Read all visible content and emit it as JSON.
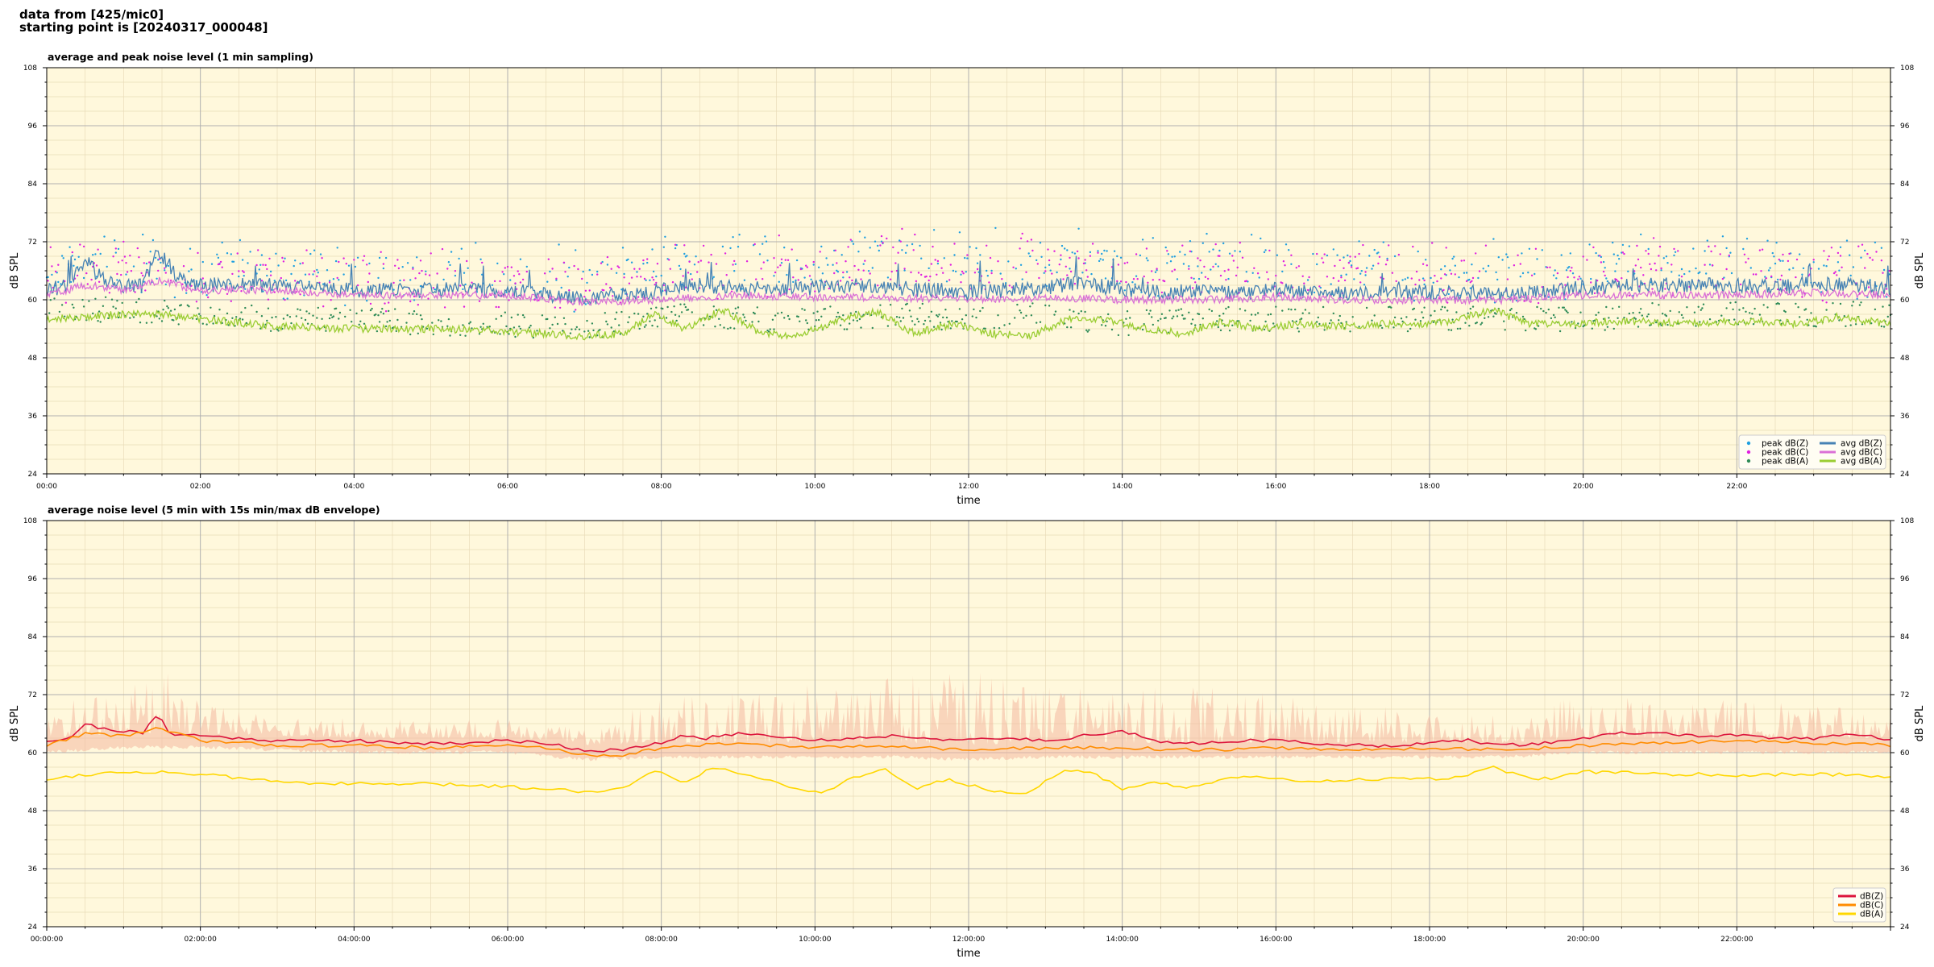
{
  "header": {
    "line1": "data from [425/mic0]",
    "line2": "starting point is [20240317_000048]"
  },
  "colors": {
    "plot_bg": "#fff8dc",
    "major_grid": "#b0b0b0",
    "minor_grid": "#e8dcb8",
    "peak_z": "#1f9fe0",
    "peak_c": "#e020e0",
    "peak_a": "#2e8b57",
    "avg_z": "#4682b4",
    "avg_c": "#da70d6",
    "avg_a": "#9acd32",
    "env_fill": "#f4b8a0",
    "db_z": "#dc143c",
    "db_c": "#ff8c00",
    "db_a": "#ffd700"
  },
  "chart_data": [
    {
      "type": "line",
      "title": "average and peak noise level (1 min sampling)",
      "xlabel": "time",
      "ylabel": "dB SPL",
      "xlim_hours": [
        0,
        24
      ],
      "ylim": [
        24,
        108
      ],
      "yticks": [
        24,
        36,
        48,
        60,
        72,
        84,
        96,
        108
      ],
      "xticks": [
        "00:00",
        "02:00",
        "04:00",
        "06:00",
        "08:00",
        "10:00",
        "12:00",
        "14:00",
        "16:00",
        "18:00",
        "20:00",
        "22:00"
      ],
      "grid": true,
      "legend_position": "bottom-right",
      "series": [
        {
          "name": "peak dB(Z)",
          "kind": "scatter",
          "x_hours": [
            0,
            1,
            2,
            3,
            4,
            5,
            6,
            7,
            8,
            9,
            10,
            11,
            12,
            13,
            14,
            15,
            16,
            17,
            18,
            19,
            20,
            21,
            22,
            23,
            24
          ],
          "values": [
            66,
            68,
            66,
            66,
            65,
            65,
            65,
            64,
            67,
            68,
            68,
            69,
            68,
            69,
            67,
            68,
            67,
            67,
            66,
            66,
            67,
            67,
            67,
            67,
            66
          ]
        },
        {
          "name": "peak dB(C)",
          "kind": "scatter",
          "x_hours": [
            0,
            1,
            2,
            3,
            4,
            5,
            6,
            7,
            8,
            9,
            10,
            11,
            12,
            13,
            14,
            15,
            16,
            17,
            18,
            19,
            20,
            21,
            22,
            23,
            24
          ],
          "values": [
            65,
            67,
            65,
            65,
            64,
            64,
            64,
            63,
            66,
            67,
            67,
            68,
            67,
            68,
            66,
            67,
            66,
            66,
            65,
            65,
            66,
            66,
            66,
            66,
            65
          ]
        },
        {
          "name": "peak dB(A)",
          "kind": "scatter",
          "x_hours": [
            0,
            1,
            2,
            3,
            4,
            5,
            6,
            7,
            8,
            9,
            10,
            11,
            12,
            13,
            14,
            15,
            16,
            17,
            18,
            19,
            20,
            21,
            22,
            23,
            24
          ],
          "values": [
            58,
            58,
            57,
            56,
            56,
            55,
            55,
            54,
            57,
            56,
            56,
            57,
            56,
            57,
            55,
            56,
            56,
            56,
            56,
            56,
            56,
            57,
            57,
            57,
            57
          ]
        },
        {
          "name": "avg dB(Z)",
          "kind": "line",
          "x_hours": [
            0,
            0.25,
            0.5,
            0.75,
            1,
            1.25,
            1.45,
            1.75,
            2,
            3,
            4,
            5,
            6,
            6.5,
            7,
            7.5,
            8,
            8.5,
            9,
            9.5,
            10,
            10.5,
            11,
            11.5,
            12,
            12.5,
            13,
            13.5,
            14,
            14.5,
            15,
            15.5,
            16,
            16.5,
            17,
            17.5,
            18,
            18.5,
            19,
            19.5,
            20,
            20.5,
            21,
            21.5,
            22,
            22.5,
            23,
            23.5,
            24
          ],
          "values": [
            62,
            63,
            68,
            64,
            63,
            63,
            70,
            64,
            63,
            63,
            62,
            62,
            62,
            61,
            60.5,
            61,
            62,
            63,
            62.5,
            62,
            62.5,
            63,
            62.5,
            62,
            61.5,
            62,
            62.5,
            63.5,
            62,
            61.5,
            62,
            61.5,
            62,
            61.5,
            61,
            61.5,
            61.5,
            61.5,
            61,
            61.5,
            62.5,
            63,
            63,
            63,
            63,
            62.5,
            63.5,
            63,
            62
          ]
        },
        {
          "name": "avg dB(C)",
          "kind": "line",
          "x_hours": [
            0,
            0.5,
            1,
            1.45,
            2,
            3,
            4,
            5,
            6,
            7,
            8,
            9,
            10,
            11,
            12,
            13,
            14,
            15,
            16,
            17,
            18,
            19,
            20,
            21,
            22,
            23,
            24
          ],
          "values": [
            61,
            63,
            62,
            64,
            62,
            62,
            61,
            61,
            61,
            59.5,
            60,
            61,
            60.5,
            60.5,
            60,
            60.5,
            60,
            60,
            60.5,
            60,
            60,
            60,
            61,
            61,
            61,
            61.5,
            61
          ]
        },
        {
          "name": "avg dB(A)",
          "kind": "line",
          "x_hours": [
            0,
            0.5,
            1,
            1.5,
            2,
            3,
            4,
            5,
            6,
            7,
            7.5,
            7.9,
            8.3,
            8.8,
            9.3,
            9.8,
            10.3,
            10.8,
            11.3,
            11.8,
            12.3,
            12.8,
            13.3,
            13.8,
            14.3,
            14.8,
            15.3,
            15.8,
            16.3,
            16.8,
            17.3,
            17.8,
            18.3,
            18.8,
            19.3,
            19.8,
            20.3,
            20.8,
            21.3,
            21.8,
            22.3,
            22.8,
            23.3,
            24
          ],
          "values": [
            56,
            56.5,
            57,
            57,
            56,
            54.5,
            54,
            54,
            53.5,
            52.5,
            53,
            57,
            54,
            58,
            53,
            52.5,
            56,
            57.5,
            53,
            55,
            53,
            52.5,
            56,
            56,
            54,
            53,
            55.5,
            54,
            55,
            54.5,
            55,
            55,
            55.5,
            58,
            55,
            55,
            55.5,
            55.5,
            55,
            55.5,
            55.5,
            55,
            56.5,
            55
          ]
        }
      ]
    },
    {
      "type": "area",
      "title": "average noise level (5 min with 15s min/max dB envelope)",
      "xlabel": "time",
      "ylabel": "dB SPL",
      "xlim_hours": [
        0,
        24
      ],
      "ylim": [
        24,
        108
      ],
      "yticks": [
        24,
        36,
        48,
        60,
        72,
        84,
        96,
        108
      ],
      "xticks": [
        "00:00:00",
        "02:00:00",
        "04:00:00",
        "06:00:00",
        "08:00:00",
        "10:00:00",
        "12:00:00",
        "14:00:00",
        "16:00:00",
        "18:00:00",
        "20:00:00",
        "22:00:00"
      ],
      "grid": true,
      "legend_position": "bottom-right",
      "envelope_upper": {
        "x_hours": [
          0,
          0.5,
          1,
          1.45,
          2,
          3,
          4,
          5,
          6,
          7,
          8,
          9,
          10,
          11,
          12,
          13,
          14,
          15,
          16,
          17,
          18,
          19,
          20,
          21,
          22,
          23,
          24
        ],
        "values": [
          66,
          72,
          70,
          80,
          68,
          66,
          65,
          65,
          65,
          63,
          70,
          72,
          72,
          74,
          75,
          73,
          71,
          72,
          70,
          68,
          67,
          66,
          70,
          69,
          69,
          68,
          66
        ]
      },
      "envelope_lower": {
        "x_hours": [
          0,
          1,
          2,
          3,
          4,
          5,
          6,
          7,
          8,
          9,
          10,
          11,
          12,
          13,
          14,
          15,
          16,
          17,
          18,
          19,
          20,
          21,
          22,
          23,
          24
        ],
        "values": [
          61,
          62,
          62,
          61.5,
          61,
          61,
          61,
          59.5,
          60,
          60,
          60,
          60,
          59.5,
          60,
          60,
          60,
          60,
          60,
          60,
          60,
          61,
          61,
          61,
          61,
          61
        ]
      },
      "series": [
        {
          "name": "dB(Z)",
          "x_hours": [
            0,
            0.3,
            0.5,
            0.7,
            1,
            1.25,
            1.45,
            1.6,
            2,
            2.5,
            3,
            3.5,
            4,
            4.5,
            5,
            5.5,
            6,
            6.5,
            7,
            7.5,
            8,
            8.3,
            8.6,
            9,
            9.5,
            10,
            10.5,
            11,
            11.5,
            12,
            12.5,
            13,
            13.5,
            14,
            14.5,
            15,
            15.5,
            16,
            16.5,
            17,
            17.5,
            18,
            18.5,
            19,
            19.5,
            20,
            20.5,
            21,
            21.5,
            22,
            22.5,
            23,
            23.5,
            24
          ],
          "values": [
            62.5,
            63,
            66,
            65,
            64.5,
            64,
            68,
            64,
            63.5,
            63,
            62.5,
            62.5,
            62.5,
            62,
            62,
            62,
            62.5,
            62,
            60.5,
            60.5,
            62,
            63.5,
            63,
            64,
            63.5,
            62.5,
            63,
            63.5,
            63,
            62.5,
            63,
            62.5,
            63.5,
            64.5,
            62,
            62,
            62.5,
            62.5,
            62,
            61.5,
            61.5,
            62,
            62.5,
            61.5,
            62,
            63,
            64,
            64,
            63.5,
            63.5,
            63,
            63,
            64,
            62.5
          ]
        },
        {
          "name": "dB(C)",
          "x_hours": [
            0,
            0.5,
            1,
            1.45,
            2,
            3,
            4,
            5,
            6,
            6.5,
            7,
            7.5,
            8,
            9,
            10,
            11,
            12,
            13,
            14,
            15,
            16,
            17,
            18,
            19,
            20,
            21,
            22,
            23,
            24
          ],
          "values": [
            61.5,
            64,
            63.5,
            65,
            62.5,
            61.5,
            61.5,
            61,
            61.5,
            61,
            59.5,
            59.5,
            61,
            62,
            61,
            61.5,
            60.5,
            61,
            61,
            60.5,
            61,
            60.5,
            61,
            60.5,
            61.5,
            62,
            62.5,
            62,
            61.5
          ]
        },
        {
          "name": "dB(A)",
          "x_hours": [
            0,
            0.5,
            1,
            1.5,
            2,
            3,
            4,
            5,
            6,
            7,
            7.5,
            7.9,
            8.3,
            8.7,
            9.2,
            9.7,
            10.1,
            10.5,
            10.9,
            11.3,
            11.7,
            12.1,
            12.5,
            12.8,
            13.2,
            13.6,
            14,
            14.4,
            14.8,
            15.2,
            15.6,
            16,
            16.5,
            17,
            17.5,
            18,
            18.4,
            18.8,
            19.2,
            19.6,
            20,
            20.5,
            21,
            21.5,
            22,
            22.5,
            23,
            23.5,
            24
          ],
          "values": [
            54.5,
            55.5,
            56,
            56,
            55.5,
            54,
            53.5,
            53.5,
            53,
            52,
            52.5,
            56.5,
            54,
            57,
            55,
            53,
            51.5,
            55,
            56.5,
            52.5,
            54.5,
            53,
            51.5,
            52,
            56,
            56,
            52.5,
            54,
            52.5,
            54,
            55,
            54.5,
            54,
            54.5,
            54.5,
            54.5,
            55,
            57,
            55,
            54.5,
            56,
            56,
            55.5,
            55.5,
            55,
            55.5,
            55.5,
            55.5,
            55
          ]
        }
      ]
    }
  ]
}
